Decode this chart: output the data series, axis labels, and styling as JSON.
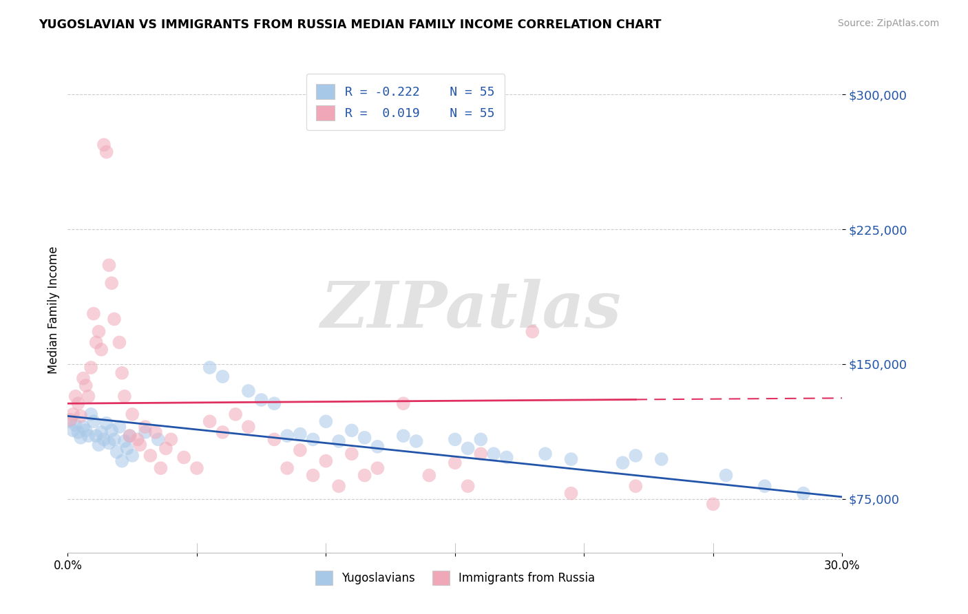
{
  "title": "YUGOSLAVIAN VS IMMIGRANTS FROM RUSSIA MEDIAN FAMILY INCOME CORRELATION CHART",
  "source": "Source: ZipAtlas.com",
  "ylabel": "Median Family Income",
  "yticks": [
    75000,
    150000,
    225000,
    300000
  ],
  "ytick_labels": [
    "$75,000",
    "$150,000",
    "$225,000",
    "$300,000"
  ],
  "xticks": [
    0.0,
    0.05,
    0.1,
    0.15,
    0.2,
    0.25,
    0.3
  ],
  "xtick_labels": [
    "0.0%",
    "",
    "",
    "",
    "",
    "",
    "30.0%"
  ],
  "xmin": 0.0,
  "xmax": 0.3,
  "ymin": 45000,
  "ymax": 315000,
  "legend_bottom1": "Yugoslavians",
  "legend_bottom2": "Immigrants from Russia",
  "color_blue": "#A8C8E8",
  "color_pink": "#F0A8B8",
  "line_color_blue": "#2255AA",
  "line_color_pink": "#E03060",
  "watermark_text": "ZIPatlas",
  "watermark_color": "#CCCCCC",
  "R_blue": -0.222,
  "R_pink": 0.019,
  "blue_line_y0": 121000,
  "blue_line_y1": 76000,
  "pink_line_y0": 128000,
  "pink_line_y1": 131000,
  "blue_scatter": [
    [
      0.001,
      118000
    ],
    [
      0.002,
      113000
    ],
    [
      0.003,
      116000
    ],
    [
      0.004,
      112000
    ],
    [
      0.005,
      109000
    ],
    [
      0.006,
      115000
    ],
    [
      0.007,
      113000
    ],
    [
      0.008,
      110000
    ],
    [
      0.009,
      122000
    ],
    [
      0.01,
      118000
    ],
    [
      0.011,
      110000
    ],
    [
      0.012,
      105000
    ],
    [
      0.013,
      112000
    ],
    [
      0.014,
      108000
    ],
    [
      0.015,
      117000
    ],
    [
      0.016,
      106000
    ],
    [
      0.017,
      113000
    ],
    [
      0.018,
      108000
    ],
    [
      0.019,
      101000
    ],
    [
      0.02,
      115000
    ],
    [
      0.021,
      96000
    ],
    [
      0.022,
      107000
    ],
    [
      0.023,
      103000
    ],
    [
      0.024,
      110000
    ],
    [
      0.025,
      99000
    ],
    [
      0.03,
      112000
    ],
    [
      0.035,
      108000
    ],
    [
      0.055,
      148000
    ],
    [
      0.06,
      143000
    ],
    [
      0.07,
      135000
    ],
    [
      0.075,
      130000
    ],
    [
      0.08,
      128000
    ],
    [
      0.085,
      110000
    ],
    [
      0.09,
      111000
    ],
    [
      0.095,
      108000
    ],
    [
      0.1,
      118000
    ],
    [
      0.105,
      107000
    ],
    [
      0.11,
      113000
    ],
    [
      0.115,
      109000
    ],
    [
      0.12,
      104000
    ],
    [
      0.13,
      110000
    ],
    [
      0.135,
      107000
    ],
    [
      0.15,
      108000
    ],
    [
      0.155,
      103000
    ],
    [
      0.16,
      108000
    ],
    [
      0.165,
      100000
    ],
    [
      0.17,
      98000
    ],
    [
      0.185,
      100000
    ],
    [
      0.195,
      97000
    ],
    [
      0.215,
      95000
    ],
    [
      0.22,
      99000
    ],
    [
      0.23,
      97000
    ],
    [
      0.255,
      88000
    ],
    [
      0.27,
      82000
    ],
    [
      0.285,
      78000
    ]
  ],
  "pink_scatter": [
    [
      0.001,
      119000
    ],
    [
      0.002,
      122000
    ],
    [
      0.003,
      132000
    ],
    [
      0.004,
      128000
    ],
    [
      0.005,
      121000
    ],
    [
      0.006,
      142000
    ],
    [
      0.007,
      138000
    ],
    [
      0.008,
      132000
    ],
    [
      0.009,
      148000
    ],
    [
      0.01,
      178000
    ],
    [
      0.011,
      162000
    ],
    [
      0.012,
      168000
    ],
    [
      0.013,
      158000
    ],
    [
      0.014,
      272000
    ],
    [
      0.015,
      268000
    ],
    [
      0.016,
      205000
    ],
    [
      0.017,
      195000
    ],
    [
      0.018,
      175000
    ],
    [
      0.02,
      162000
    ],
    [
      0.021,
      145000
    ],
    [
      0.022,
      132000
    ],
    [
      0.024,
      110000
    ],
    [
      0.025,
      122000
    ],
    [
      0.027,
      108000
    ],
    [
      0.028,
      105000
    ],
    [
      0.03,
      115000
    ],
    [
      0.032,
      99000
    ],
    [
      0.034,
      112000
    ],
    [
      0.036,
      92000
    ],
    [
      0.038,
      103000
    ],
    [
      0.04,
      108000
    ],
    [
      0.045,
      98000
    ],
    [
      0.05,
      92000
    ],
    [
      0.055,
      118000
    ],
    [
      0.06,
      112000
    ],
    [
      0.065,
      122000
    ],
    [
      0.07,
      115000
    ],
    [
      0.08,
      108000
    ],
    [
      0.085,
      92000
    ],
    [
      0.09,
      102000
    ],
    [
      0.095,
      88000
    ],
    [
      0.1,
      96000
    ],
    [
      0.105,
      82000
    ],
    [
      0.11,
      100000
    ],
    [
      0.115,
      88000
    ],
    [
      0.12,
      92000
    ],
    [
      0.13,
      128000
    ],
    [
      0.14,
      88000
    ],
    [
      0.15,
      95000
    ],
    [
      0.155,
      82000
    ],
    [
      0.16,
      100000
    ],
    [
      0.18,
      168000
    ],
    [
      0.195,
      78000
    ],
    [
      0.22,
      82000
    ],
    [
      0.25,
      72000
    ]
  ]
}
